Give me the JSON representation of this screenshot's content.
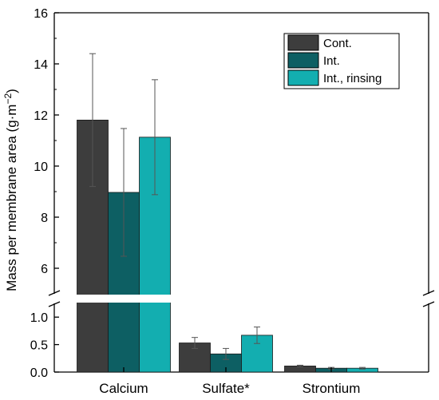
{
  "chart_data": {
    "type": "bar",
    "title": "",
    "xlabel": "",
    "ylabel": "Mass per membrane area (g·m⁻²)",
    "ylabel_main": "Mass per membrane area (g·m",
    "ylabel_sup": "−2",
    "ylabel_close": ")",
    "categories": [
      "Calcium",
      "Sulfate*",
      "Strontium"
    ],
    "axis_break": {
      "lower_range": [
        0,
        1.25
      ],
      "upper_range": [
        5,
        16
      ],
      "lower_ticks": [
        "0.0",
        "0.5",
        "1.0"
      ],
      "upper_ticks": [
        "6",
        "8",
        "10",
        "12",
        "14",
        "16"
      ]
    },
    "grid": false,
    "legend_position": "top-right",
    "series": [
      {
        "name": "Cont.",
        "color": "#3d3d3d",
        "values": [
          11.8,
          0.53,
          0.11
        ],
        "errors": [
          2.6,
          0.1,
          0.015
        ]
      },
      {
        "name": "Int.",
        "color": "#0d5f63",
        "values": [
          8.97,
          0.33,
          0.07
        ],
        "errors": [
          2.5,
          0.1,
          0.015
        ]
      },
      {
        "name": "Int., rinsing",
        "color": "#13aeb0",
        "values": [
          11.13,
          0.67,
          0.07
        ],
        "errors": [
          2.25,
          0.15,
          0.015
        ]
      }
    ]
  }
}
